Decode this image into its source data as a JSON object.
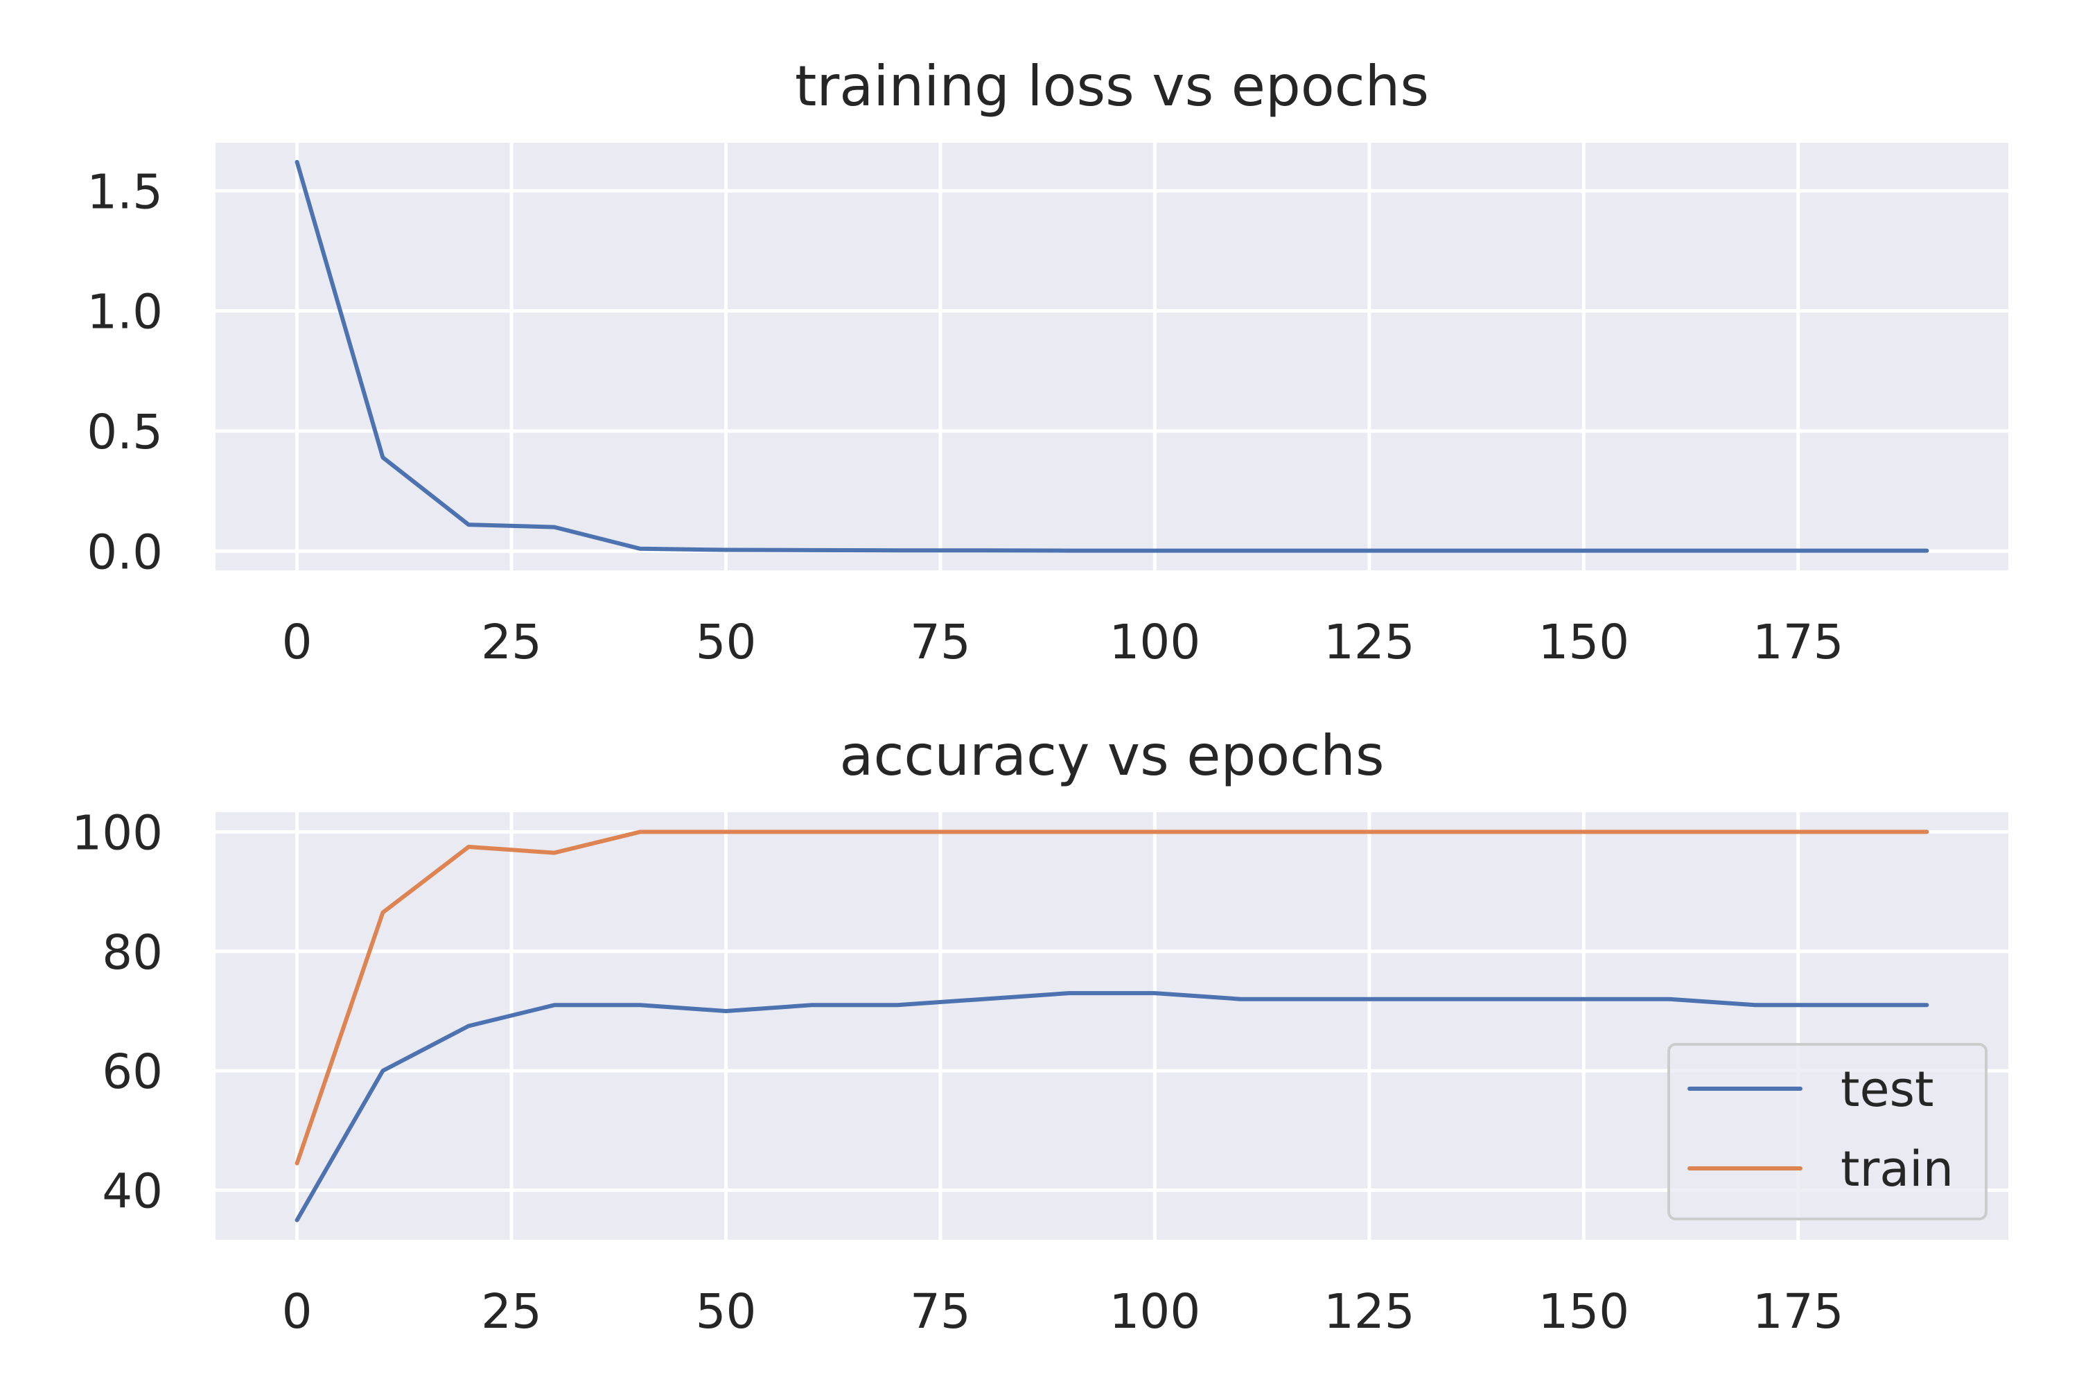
{
  "colors": {
    "background": "#ffffff",
    "axes_face": "#eaeaf2",
    "grid": "#ffffff",
    "text": "#262626",
    "test": "#4c72b0",
    "train": "#dd8452",
    "legend_edge": "#cccccc"
  },
  "chart_data": [
    {
      "type": "line",
      "title": "training loss vs epochs",
      "xlabel": "",
      "ylabel": "",
      "grid": true,
      "xlim": [
        -9.5,
        199.5
      ],
      "ylim": [
        -0.08,
        1.7
      ],
      "xticks": [
        0,
        25,
        50,
        75,
        100,
        125,
        150,
        175
      ],
      "yticks": [
        0.0,
        0.5,
        1.0,
        1.5
      ],
      "ytick_labels": [
        "0.0",
        "0.5",
        "1.0",
        "1.5"
      ],
      "series": [
        {
          "color": "#4c72b0",
          "x": [
            0,
            10,
            20,
            30,
            40,
            50,
            60,
            70,
            80,
            90,
            100,
            110,
            120,
            130,
            140,
            150,
            160,
            170,
            180,
            190
          ],
          "y": [
            1.62,
            0.39,
            0.11,
            0.1,
            0.01,
            0.005,
            0.004,
            0.003,
            0.003,
            0.002,
            0.002,
            0.002,
            0.002,
            0.002,
            0.002,
            0.002,
            0.002,
            0.002,
            0.002,
            0.002
          ]
        }
      ]
    },
    {
      "type": "line",
      "title": "accuracy vs epochs",
      "xlabel": "",
      "ylabel": "",
      "grid": true,
      "legend": "lower-right",
      "xlim": [
        -9.5,
        199.5
      ],
      "ylim": [
        31.7,
        103.3
      ],
      "xticks": [
        0,
        25,
        50,
        75,
        100,
        125,
        150,
        175
      ],
      "yticks": [
        40,
        60,
        80,
        100
      ],
      "ytick_labels": [
        "40",
        "60",
        "80",
        "100"
      ],
      "series": [
        {
          "name": "test",
          "color": "#4c72b0",
          "x": [
            0,
            10,
            20,
            30,
            40,
            50,
            60,
            70,
            80,
            90,
            100,
            110,
            120,
            130,
            140,
            150,
            160,
            170,
            180,
            190
          ],
          "y": [
            35,
            60,
            67.5,
            71,
            71,
            70,
            71,
            71,
            72,
            73,
            73,
            72,
            72,
            72,
            72,
            72,
            72,
            71,
            71,
            71
          ]
        },
        {
          "name": "train",
          "color": "#dd8452",
          "x": [
            0,
            10,
            20,
            30,
            40,
            50,
            60,
            70,
            80,
            90,
            100,
            110,
            120,
            130,
            140,
            150,
            160,
            170,
            180,
            190
          ],
          "y": [
            44.5,
            86.5,
            97.5,
            96.5,
            100,
            100,
            100,
            100,
            100,
            100,
            100,
            100,
            100,
            100,
            100,
            100,
            100,
            100,
            100,
            100
          ]
        }
      ]
    }
  ]
}
